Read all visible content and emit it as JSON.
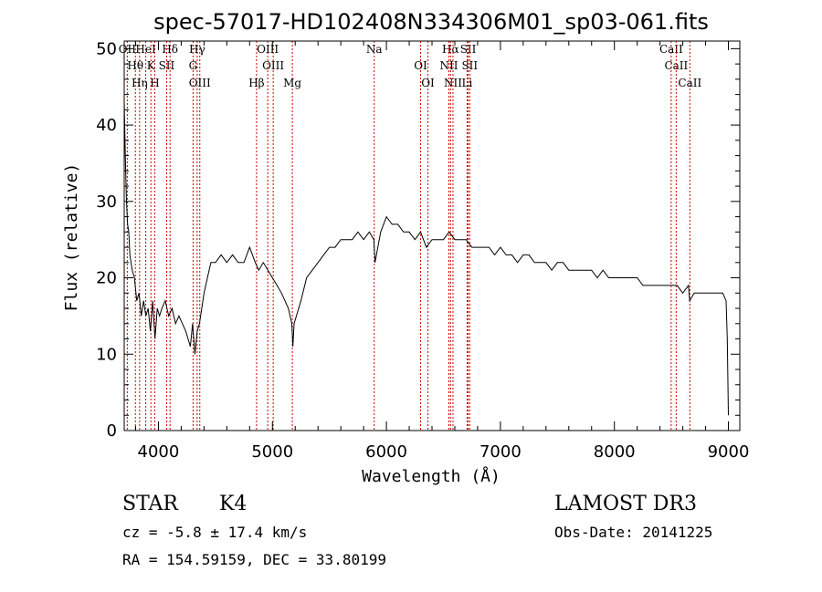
{
  "chart_data": {
    "type": "line",
    "title": "spec-57017-HD102408N334306M01_sp03-061.fits",
    "xlabel": "Wavelength (Å)",
    "ylabel": "Flux (relative)",
    "xlim": [
      3700,
      9100
    ],
    "ylim": [
      0,
      51
    ],
    "xticks": [
      4000,
      5000,
      6000,
      7000,
      8000,
      9000
    ],
    "yticks": [
      0,
      10,
      20,
      30,
      40,
      50
    ],
    "grid": false,
    "series": [
      {
        "name": "spectrum",
        "x": [
          3700,
          3710,
          3720,
          3730,
          3740,
          3750,
          3770,
          3790,
          3810,
          3830,
          3850,
          3870,
          3890,
          3910,
          3930,
          3950,
          3970,
          3990,
          4010,
          4030,
          4060,
          4090,
          4120,
          4150,
          4180,
          4210,
          4240,
          4260,
          4280,
          4300,
          4320,
          4340,
          4360,
          4380,
          4400,
          4430,
          4460,
          4500,
          4550,
          4600,
          4650,
          4700,
          4750,
          4800,
          4850,
          4880,
          4920,
          4960,
          5000,
          5040,
          5080,
          5110,
          5140,
          5170,
          5180,
          5190,
          5210,
          5250,
          5300,
          5350,
          5400,
          5450,
          5500,
          5550,
          5600,
          5650,
          5700,
          5750,
          5800,
          5850,
          5890,
          5900,
          5950,
          6000,
          6050,
          6100,
          6150,
          6200,
          6250,
          6300,
          6350,
          6400,
          6450,
          6500,
          6550,
          6600,
          6650,
          6700,
          6750,
          6800,
          6850,
          6900,
          6950,
          7000,
          7050,
          7100,
          7150,
          7200,
          7250,
          7300,
          7350,
          7400,
          7450,
          7500,
          7550,
          7600,
          7650,
          7700,
          7750,
          7800,
          7850,
          7900,
          7950,
          8000,
          8050,
          8100,
          8150,
          8200,
          8250,
          8300,
          8350,
          8400,
          8450,
          8500,
          8550,
          8600,
          8650,
          8660,
          8700,
          8750,
          8800,
          8850,
          8900,
          8950,
          8980,
          8990,
          9000
        ],
        "y": [
          43,
          36,
          30,
          27,
          26,
          23,
          21,
          20,
          17,
          18,
          15,
          17,
          15,
          16,
          13,
          17,
          12,
          16,
          15,
          16,
          17,
          15,
          16,
          14,
          15,
          14,
          13,
          12,
          11,
          14,
          10,
          13,
          14,
          16,
          18,
          20,
          22,
          22,
          23,
          22,
          23,
          22,
          22,
          24,
          22,
          21,
          22,
          21,
          20,
          19,
          18,
          17,
          16,
          14,
          11,
          14,
          15,
          17,
          20,
          21,
          22,
          23,
          24,
          24,
          25,
          25,
          25,
          26,
          25,
          26,
          25,
          22,
          26,
          28,
          27,
          27,
          26,
          26,
          25,
          26,
          24,
          25,
          25,
          25,
          26,
          25,
          25,
          25,
          24,
          24,
          24,
          24,
          23,
          24,
          23,
          23,
          22,
          23,
          23,
          22,
          22,
          22,
          21,
          22,
          22,
          21,
          21,
          21,
          21,
          21,
          20,
          21,
          20,
          20,
          20,
          20,
          20,
          20,
          19,
          19,
          19,
          19,
          19,
          19,
          19,
          18,
          19,
          17,
          18,
          18,
          18,
          18,
          18,
          18,
          17,
          12,
          2
        ]
      }
    ],
    "spectral_lines": [
      {
        "label": "OII",
        "wavelength": 3727
      },
      {
        "label": "Hθ",
        "wavelength": 3798
      },
      {
        "label": "Hη",
        "wavelength": 3835
      },
      {
        "label": "HeI",
        "wavelength": 3889
      },
      {
        "label": "K",
        "wavelength": 3934
      },
      {
        "label": "H",
        "wavelength": 3968
      },
      {
        "label": "Hδ",
        "wavelength": 4102
      },
      {
        "label": "SII",
        "wavelength": 4072
      },
      {
        "label": "OIII",
        "wavelength": 4363
      },
      {
        "label": "Hγ",
        "wavelength": 4340
      },
      {
        "label": "G",
        "wavelength": 4304
      },
      {
        "label": "Hβ",
        "wavelength": 4861
      },
      {
        "label": "OIII",
        "wavelength": 4959
      },
      {
        "label": "OIII",
        "wavelength": 5007
      },
      {
        "label": "Mg",
        "wavelength": 5175
      },
      {
        "label": "Na",
        "wavelength": 5893
      },
      {
        "label": "OI",
        "wavelength": 6300
      },
      {
        "label": "OI",
        "wavelength": 6364
      },
      {
        "label": "Hα",
        "wavelength": 6563
      },
      {
        "label": "NII",
        "wavelength": 6548
      },
      {
        "label": "NII",
        "wavelength": 6584
      },
      {
        "label": "SII",
        "wavelength": 6717
      },
      {
        "label": "SII",
        "wavelength": 6731
      },
      {
        "label": "Li",
        "wavelength": 6708
      },
      {
        "label": "CaII",
        "wavelength": 8498
      },
      {
        "label": "CaII",
        "wavelength": 8542
      },
      {
        "label": "CaII",
        "wavelength": 8662
      }
    ]
  },
  "info": {
    "class_label": "STAR",
    "subclass": "K4",
    "redshift": "cz = -5.8 ± 17.4 km/s",
    "coords": "RA = 154.59159, DEC =  33.80199",
    "survey": "LAMOST DR3",
    "obs_date": "Obs-Date: 20141225"
  },
  "colors": {
    "line_marker": "#cc0000",
    "spectrum": "#000000",
    "axis": "#000000"
  }
}
